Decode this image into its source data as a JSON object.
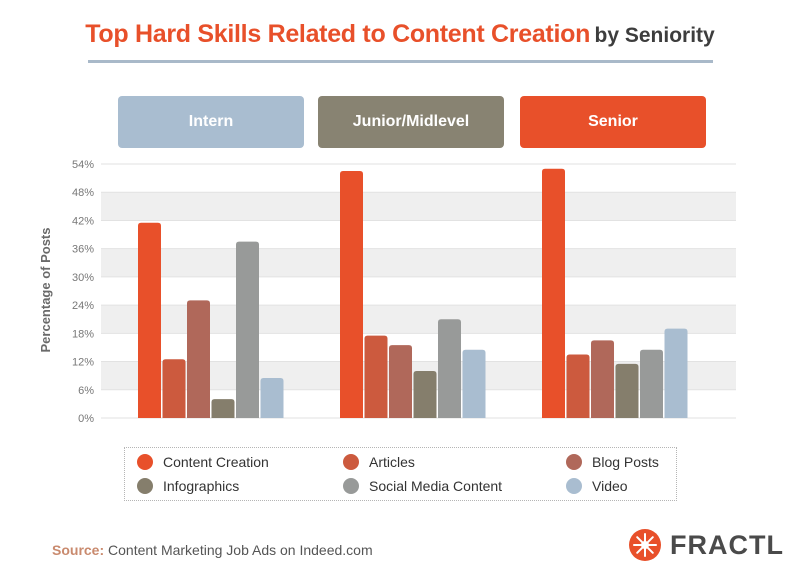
{
  "title": "Top Hard Skills Related to Content Creation",
  "subtitle": "by Seniority",
  "colors": {
    "accent": "#e8502a",
    "series": [
      "#e8502a",
      "#cc5a3e",
      "#b0685a",
      "#857e6c",
      "#989a99",
      "#a9bdd0"
    ],
    "headers": [
      "#a9bdd0",
      "#888372",
      "#e8502a"
    ]
  },
  "chart_data": {
    "type": "bar",
    "categories": [
      "Intern",
      "Junior/Midlevel",
      "Senior"
    ],
    "ylabel": "Percentage of Posts",
    "ylim": [
      0,
      54
    ],
    "yticks": [
      "0%",
      "6%",
      "12%",
      "18%",
      "24%",
      "30%",
      "36%",
      "42%",
      "48%",
      "54%"
    ],
    "grid": "alternating horizontal bands",
    "legend_position": "bottom",
    "series": [
      {
        "name": "Content Creation",
        "values": [
          41.5,
          52.5,
          53
        ]
      },
      {
        "name": "Articles",
        "values": [
          12.5,
          17.5,
          13.5
        ]
      },
      {
        "name": "Blog Posts",
        "values": [
          25,
          15.5,
          16.5
        ]
      },
      {
        "name": "Infographics",
        "values": [
          4,
          10,
          11.5
        ]
      },
      {
        "name": "Social Media Content",
        "values": [
          37.5,
          21,
          14.5
        ]
      },
      {
        "name": "Video",
        "values": [
          8.5,
          14.5,
          19
        ]
      }
    ]
  },
  "source": {
    "label": "Source:",
    "text": "Content Marketing Job Ads on Indeed.com"
  },
  "brand": {
    "name": "FRACTL",
    "icon": "fractl-logo-icon"
  }
}
